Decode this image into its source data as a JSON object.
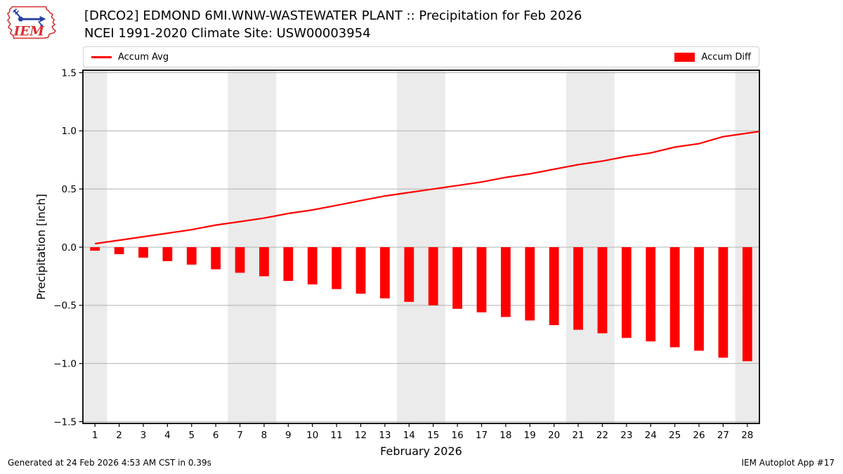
{
  "header": {
    "title": "[DRCO2] EDMOND 6MI.WNW-WASTEWATER PLANT :: Precipitation for Feb 2026",
    "subtitle": "NCEI 1991-2020 Climate Site: USW00003954",
    "logo_text": "IEM"
  },
  "legend": {
    "avg_label": "Accum Avg",
    "diff_label": "Accum Diff"
  },
  "footer": {
    "generated": "Generated at 24 Feb 2026 4:53 AM CST in 0.39s",
    "app": "IEM Autoplot App #17"
  },
  "colors": {
    "series_red": "#ff0000",
    "weekend_band": "#ebebeb",
    "gridline": "#b0b0b0",
    "axes_border": "#000000",
    "logo_red": "#d62f33",
    "logo_blue": "#2741a6"
  },
  "chart_data": {
    "type": "bar",
    "title": "[DRCO2] EDMOND 6MI.WNW-WASTEWATER PLANT :: Precipitation for Feb 2026",
    "subtitle": "NCEI 1991-2020 Climate Site: USW00003954",
    "xlabel": "February 2026",
    "ylabel": "Precipitation [inch]",
    "x": [
      1,
      2,
      3,
      4,
      5,
      6,
      7,
      8,
      9,
      10,
      11,
      12,
      13,
      14,
      15,
      16,
      17,
      18,
      19,
      20,
      21,
      22,
      23,
      24,
      25,
      26,
      27,
      28
    ],
    "series": [
      {
        "name": "Accum Avg",
        "type": "line",
        "values": [
          0.03,
          0.06,
          0.09,
          0.12,
          0.15,
          0.19,
          0.22,
          0.25,
          0.29,
          0.32,
          0.36,
          0.4,
          0.44,
          0.47,
          0.5,
          0.53,
          0.56,
          0.6,
          0.63,
          0.67,
          0.71,
          0.74,
          0.78,
          0.81,
          0.86,
          0.89,
          0.95,
          0.98
        ]
      },
      {
        "name": "Accum Diff",
        "type": "bar",
        "values": [
          -0.03,
          -0.06,
          -0.09,
          -0.12,
          -0.15,
          -0.19,
          -0.22,
          -0.25,
          -0.29,
          -0.32,
          -0.36,
          -0.4,
          -0.44,
          -0.47,
          -0.5,
          -0.53,
          -0.56,
          -0.6,
          -0.63,
          -0.67,
          -0.71,
          -0.74,
          -0.78,
          -0.81,
          -0.86,
          -0.89,
          -0.95,
          -0.98
        ]
      }
    ],
    "ylim": [
      -1.5,
      1.5
    ],
    "xlim": [
      0.5,
      28.5
    ],
    "yticks": [
      1.5,
      1.0,
      0.5,
      0.0,
      -0.5,
      -1.0,
      -1.5
    ],
    "bar_width": 0.4,
    "grid": "horizontal",
    "legend_position": "top, avg left / diff right",
    "weekend_bands": [
      [
        0.5,
        1.5
      ],
      [
        6.5,
        8.5
      ],
      [
        13.5,
        15.5
      ],
      [
        20.5,
        22.5
      ],
      [
        27.5,
        28.5
      ]
    ],
    "line_extends_to_right_edge": true
  }
}
